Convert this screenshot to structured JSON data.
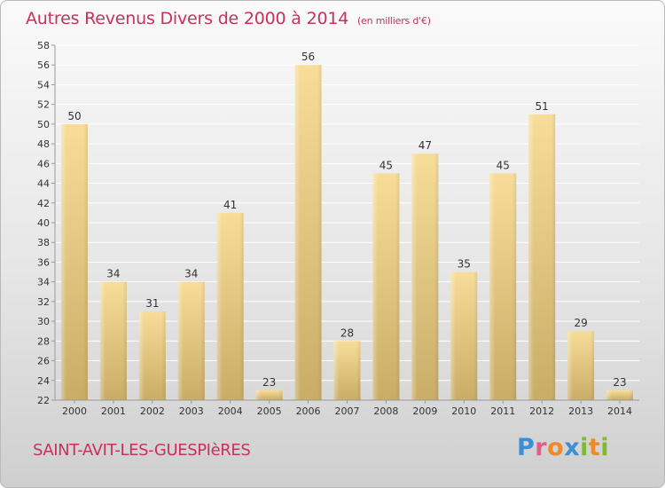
{
  "header": {
    "title": "Autres Revenus Divers de 2000 à 2014",
    "subtitle": "(en milliers d'€)"
  },
  "footer": {
    "town": "SAINT-AVIT-LES-GUESPIèRES",
    "logo": {
      "letters": [
        "P",
        "r",
        "o",
        "x",
        "i",
        "t",
        "i"
      ],
      "colors": [
        "#3a8fd6",
        "#e85a8a",
        "#f08a24",
        "#3a8fd6",
        "#7dbb2f",
        "#f08a24",
        "#7dbb2f"
      ]
    }
  },
  "colors": {
    "title": "#c8315b",
    "bar_light": "#f7dd98",
    "bar_dark": "#c9ad67",
    "axis": "#9a9a9a",
    "grid": "#ffffff"
  },
  "chart_data": {
    "type": "bar",
    "categories": [
      "2000",
      "2001",
      "2002",
      "2003",
      "2004",
      "2005",
      "2006",
      "2007",
      "2008",
      "2009",
      "2010",
      "2011",
      "2012",
      "2013",
      "2014"
    ],
    "values": [
      50,
      34,
      31,
      34,
      41,
      23,
      56,
      28,
      45,
      47,
      35,
      45,
      51,
      29,
      23
    ],
    "data_labels": [
      "50",
      "34",
      "31",
      "34",
      "41",
      "23",
      "56",
      "28",
      "45",
      "47",
      "35",
      "45",
      "51",
      "29",
      "23"
    ],
    "title": "Autres Revenus Divers de 2000 à 2014",
    "xlabel": "",
    "ylabel": "",
    "ylim": [
      22,
      58
    ],
    "yticks": [
      22,
      24,
      26,
      28,
      30,
      32,
      34,
      36,
      38,
      40,
      42,
      44,
      46,
      48,
      50,
      52,
      54,
      56,
      58
    ],
    "grid": true,
    "legend": "none"
  }
}
